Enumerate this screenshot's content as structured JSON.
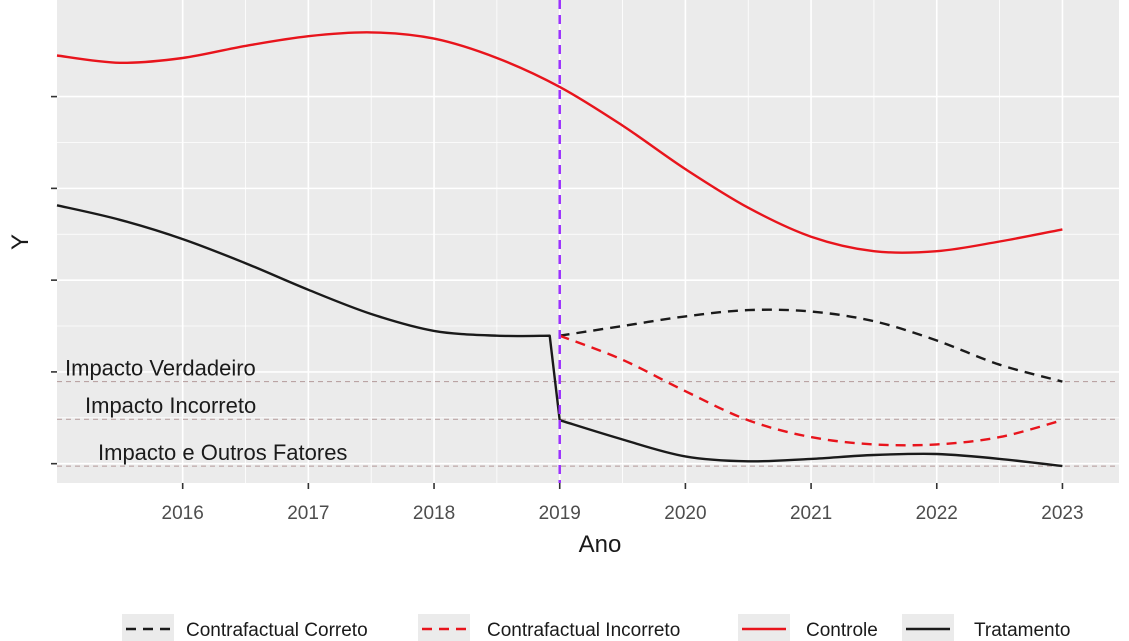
{
  "chart_data": {
    "type": "line",
    "title": "",
    "xlabel": "Ano",
    "ylabel": "Y",
    "xlim": [
      2015.0,
      2023.45
    ],
    "ylim": [
      0,
      100
    ],
    "x_ticks": [
      2016,
      2017,
      2018,
      2019,
      2020,
      2021,
      2022,
      2023
    ],
    "y_ticks": [
      4,
      23,
      42,
      61,
      80
    ],
    "grid": true,
    "legend_position": "bottom",
    "intervention_x": 2019,
    "colors": {
      "panel": "#ebebeb",
      "grid": "#ffffff",
      "red": "#e8141c",
      "black": "#1a1a1a",
      "vline": "#9b30ff",
      "ref_line": "#b39a9a"
    },
    "series": [
      {
        "name": "Controle",
        "key": "controle",
        "color": "#e8141c",
        "dash": "solid",
        "x": [
          2015.0,
          2015.5,
          2016.0,
          2016.5,
          2017.0,
          2017.5,
          2018.0,
          2018.5,
          2019.0,
          2019.5,
          2020.0,
          2020.5,
          2021.0,
          2021.5,
          2022.0,
          2022.5,
          2023.0
        ],
        "y": [
          88.5,
          87.0,
          88.0,
          90.5,
          92.5,
          93.3,
          92.0,
          88.0,
          82.0,
          74.0,
          65.0,
          57.0,
          51.0,
          48.0,
          48.0,
          50.0,
          52.5
        ]
      },
      {
        "name": "Tratamento",
        "key": "tratamento",
        "color": "#1a1a1a",
        "dash": "solid",
        "x": [
          2015.0,
          2015.5,
          2016.0,
          2016.5,
          2017.0,
          2017.5,
          2018.0,
          2018.5,
          2018.92,
          2019.0,
          2019.5,
          2020.0,
          2020.5,
          2021.0,
          2021.5,
          2022.0,
          2022.5,
          2023.0
        ],
        "y": [
          57.5,
          54.5,
          50.5,
          45.5,
          40.0,
          35.0,
          31.5,
          30.5,
          30.5,
          13.0,
          9.0,
          5.5,
          4.5,
          5.0,
          5.8,
          6.0,
          5.0,
          3.5
        ]
      },
      {
        "name": "Contrafactual Correto",
        "key": "contrafactual_correto",
        "color": "#1a1a1a",
        "dash": "dashed",
        "x": [
          2019.0,
          2019.5,
          2020.0,
          2020.5,
          2021.0,
          2021.5,
          2022.0,
          2022.5,
          2023.0
        ],
        "y": [
          30.5,
          32.5,
          34.5,
          35.8,
          35.5,
          33.5,
          29.5,
          24.5,
          21.0
        ]
      },
      {
        "name": "Contrafactual Incorreto",
        "key": "contrafactual_incorreto",
        "color": "#e8141c",
        "dash": "dashed",
        "x": [
          2019.0,
          2019.5,
          2020.0,
          2020.5,
          2021.0,
          2021.5,
          2022.0,
          2022.5,
          2023.0
        ],
        "y": [
          30.5,
          25.5,
          19.0,
          13.0,
          9.5,
          8.0,
          8.0,
          9.5,
          13.0
        ]
      }
    ],
    "reference_lines": [
      {
        "label": "Impacto Verdadeiro",
        "y": 21.0
      },
      {
        "label": "Impacto Incorreto",
        "y": 13.2
      },
      {
        "label": "Impacto e Outros Fatores",
        "y": 3.5
      }
    ],
    "legend": [
      {
        "label": "Contrafactual Correto",
        "key": "contrafactual_correto"
      },
      {
        "label": "Contrafactual Incorreto",
        "key": "contrafactual_incorreto"
      },
      {
        "label": "Controle",
        "key": "controle"
      },
      {
        "label": "Tratamento",
        "key": "tratamento"
      }
    ]
  }
}
